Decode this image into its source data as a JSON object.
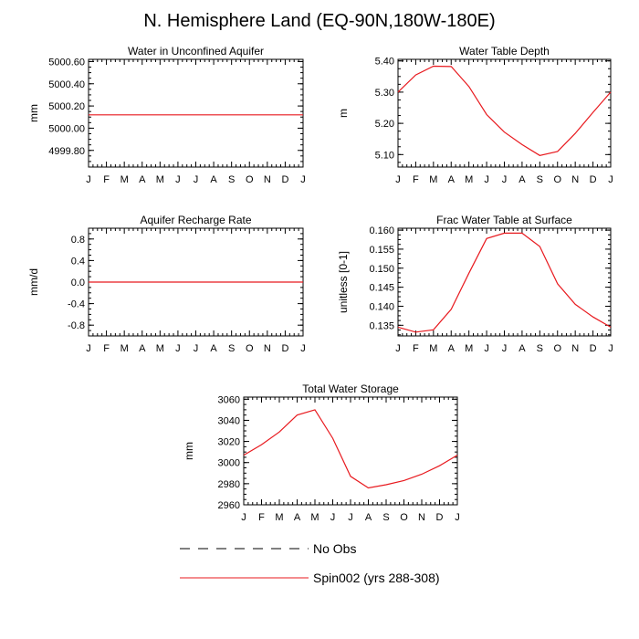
{
  "figure": {
    "title": "N. Hemisphere Land (EQ-90N,180W-180E)"
  },
  "legend": {
    "placement": "bottom",
    "entries": [
      {
        "label": "No Obs",
        "color": "#000000",
        "style": "dashed"
      },
      {
        "label": "Spin002 (yrs 288-308)",
        "color": "#e8191e",
        "style": "solid"
      }
    ]
  },
  "chart_data": [
    {
      "type": "line",
      "title": "Water in Unconfined Aquifer",
      "ylabel": "mm",
      "xlabel": "",
      "categories": [
        "J",
        "F",
        "M",
        "A",
        "M",
        "J",
        "J",
        "A",
        "S",
        "O",
        "N",
        "D",
        "J"
      ],
      "ylim": [
        4999.65,
        5000.62
      ],
      "yticks": [
        4999.8,
        5000.0,
        5000.2,
        5000.4,
        5000.6
      ],
      "ytick_labels": [
        "4999.80",
        "5000.00",
        "5000.20",
        "5000.40",
        "5000.60"
      ],
      "series": [
        {
          "values": [
            5000.12,
            5000.12,
            5000.12,
            5000.12,
            5000.12,
            5000.12,
            5000.12,
            5000.12,
            5000.12,
            5000.12,
            5000.12,
            5000.12,
            5000.12
          ],
          "color": "#e8191e"
        }
      ]
    },
    {
      "type": "line",
      "title": "Water Table Depth",
      "ylabel": "m",
      "xlabel": "",
      "categories": [
        "J",
        "F",
        "M",
        "A",
        "M",
        "J",
        "J",
        "A",
        "S",
        "O",
        "N",
        "D",
        "J"
      ],
      "ylim": [
        5.06,
        5.405
      ],
      "yticks": [
        5.1,
        5.2,
        5.3,
        5.4
      ],
      "ytick_labels": [
        "5.10",
        "5.20",
        "5.30",
        "5.40"
      ],
      "series": [
        {
          "values": [
            5.3,
            5.355,
            5.383,
            5.382,
            5.318,
            5.228,
            5.172,
            5.132,
            5.097,
            5.11,
            5.168,
            5.235,
            5.3
          ],
          "color": "#e8191e"
        }
      ]
    },
    {
      "type": "line",
      "title": "Aquifer Recharge Rate",
      "ylabel": "mm/d",
      "xlabel": "",
      "categories": [
        "J",
        "F",
        "M",
        "A",
        "M",
        "J",
        "J",
        "A",
        "S",
        "O",
        "N",
        "D",
        "J"
      ],
      "ylim": [
        -1.0,
        1.0
      ],
      "yticks": [
        -0.8,
        -0.4,
        0.0,
        0.4,
        0.8
      ],
      "ytick_labels": [
        "-0.8",
        "-0.4",
        "0.0",
        "0.4",
        "0.8"
      ],
      "series": [
        {
          "values": [
            0,
            0,
            0,
            0,
            0,
            0,
            0,
            0,
            0,
            0,
            0,
            0,
            0
          ],
          "color": "#e8191e"
        }
      ]
    },
    {
      "type": "line",
      "title": "Frac Water Table at Surface",
      "ylabel": "unitless [0-1]",
      "xlabel": "",
      "categories": [
        "J",
        "F",
        "M",
        "A",
        "M",
        "J",
        "J",
        "A",
        "S",
        "O",
        "N",
        "D",
        "J"
      ],
      "ylim": [
        0.1322,
        0.1605
      ],
      "yticks": [
        0.135,
        0.14,
        0.145,
        0.15,
        0.155,
        0.16
      ],
      "ytick_labels": [
        "0.135",
        "0.140",
        "0.145",
        "0.150",
        "0.155",
        "0.160"
      ],
      "series": [
        {
          "values": [
            0.1345,
            0.1332,
            0.1338,
            0.1392,
            0.1487,
            0.1578,
            0.1592,
            0.1592,
            0.1557,
            0.1459,
            0.1405,
            0.1372,
            0.1345
          ],
          "color": "#e8191e"
        }
      ]
    },
    {
      "type": "line",
      "title": "Total Water Storage",
      "ylabel": "mm",
      "xlabel": "",
      "categories": [
        "J",
        "F",
        "M",
        "A",
        "M",
        "J",
        "J",
        "A",
        "S",
        "O",
        "N",
        "D",
        "J"
      ],
      "ylim": [
        2960,
        3062
      ],
      "yticks": [
        2960,
        2980,
        3000,
        3020,
        3040,
        3060
      ],
      "ytick_labels": [
        "2960",
        "2980",
        "3000",
        "3020",
        "3040",
        "3060"
      ],
      "series": [
        {
          "values": [
            3007,
            3017,
            3029,
            3045,
            3050,
            3023,
            2987,
            2976,
            2979,
            2983,
            2989,
            2997,
            3007
          ],
          "color": "#e8191e"
        }
      ]
    }
  ]
}
